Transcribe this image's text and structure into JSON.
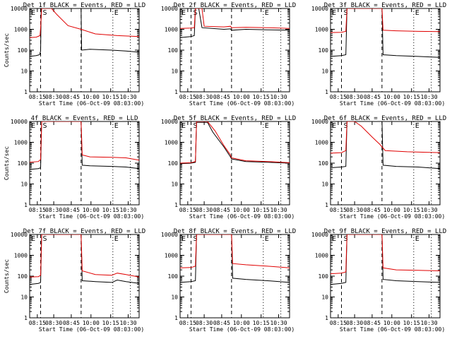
{
  "chart_data": [
    {
      "type": "line",
      "title": "Det 1f BLACK = Events, RED = LLD",
      "ylabel": "Counts/sec",
      "xlabel": "Start Time (06-Oct-09 08:03:00)",
      "xticks": [
        "08:15",
        "08:30",
        "08:45",
        "10:00",
        "10:15",
        "10:30"
      ],
      "yticks": [
        "1",
        "10",
        "100",
        "1000",
        "10000"
      ],
      "ylim": [
        1,
        10000
      ],
      "yscale": "log",
      "markers": {
        "S": "start",
        "E": "end"
      },
      "series": [
        {
          "name": "Events",
          "color": "#000000",
          "points": [
            [
              0,
              50
            ],
            [
              0.06,
              55
            ],
            [
              0.09,
              60
            ],
            [
              0.1,
              90
            ],
            [
              0.105,
              12000
            ],
            [
              0.47,
              12000
            ],
            [
              0.475,
              100
            ],
            [
              0.55,
              110
            ],
            [
              0.75,
              100
            ],
            [
              0.88,
              90
            ],
            [
              1,
              80
            ]
          ]
        },
        {
          "name": "LLD",
          "color": "#e00000",
          "points": [
            [
              0,
              400
            ],
            [
              0.06,
              420
            ],
            [
              0.095,
              500
            ],
            [
              0.1,
              1200
            ],
            [
              0.11,
              12000
            ],
            [
              0.2,
              12000
            ],
            [
              0.25,
              5000
            ],
            [
              0.35,
              1500
            ],
            [
              0.47,
              1000
            ],
            [
              0.6,
              600
            ],
            [
              0.8,
              500
            ],
            [
              1,
              450
            ]
          ]
        }
      ]
    },
    {
      "type": "line",
      "title": "Det 2f BLACK = Events, RED = LLD",
      "ylabel": "",
      "xlabel": "Start Time (06-Oct-09 08:03:00)",
      "xticks": [
        "08:15",
        "08:30",
        "08:45",
        "10:00",
        "10:15",
        "10:30"
      ],
      "yticks": [
        "1",
        "10",
        "100",
        "1000",
        "10000"
      ],
      "ylim": [
        1,
        10000
      ],
      "yscale": "log",
      "markers": {
        "S": "start",
        "E": "end"
      },
      "series": [
        {
          "name": "Events",
          "color": "#000000",
          "points": [
            [
              0,
              400
            ],
            [
              0.1,
              450
            ],
            [
              0.13,
              500
            ],
            [
              0.14,
              12000
            ],
            [
              0.17,
              12000
            ],
            [
              0.2,
              1200
            ],
            [
              0.4,
              1000
            ],
            [
              0.46,
              1050
            ],
            [
              0.47,
              900
            ],
            [
              0.6,
              1000
            ],
            [
              0.8,
              950
            ],
            [
              1,
              900
            ]
          ]
        },
        {
          "name": "LLD",
          "color": "#e00000",
          "points": [
            [
              0,
              1100
            ],
            [
              0.1,
              1150
            ],
            [
              0.13,
              1200
            ],
            [
              0.14,
              12000
            ],
            [
              0.2,
              12000
            ],
            [
              0.22,
              1400
            ],
            [
              0.4,
              1300
            ],
            [
              0.46,
              1400
            ],
            [
              0.47,
              1200
            ],
            [
              0.6,
              1250
            ],
            [
              0.8,
              1200
            ],
            [
              1,
              1100
            ]
          ]
        }
      ]
    },
    {
      "type": "line",
      "title": "Det 3f BLACK = Events, RED = LLD",
      "ylabel": "",
      "xlabel": "Start Time (06-Oct-09 08:03:00)",
      "xticks": [
        "08:15",
        "08:30",
        "08:45",
        "10:00",
        "10:15",
        "10:30"
      ],
      "yticks": [
        "1",
        "10",
        "100",
        "1000",
        "10000"
      ],
      "ylim": [
        1,
        10000
      ],
      "yscale": "log",
      "markers": {
        "S": "start",
        "E": "end"
      },
      "series": [
        {
          "name": "Events",
          "color": "#000000",
          "points": [
            [
              0,
              50
            ],
            [
              0.1,
              55
            ],
            [
              0.14,
              60
            ],
            [
              0.15,
              12000
            ],
            [
              0.16,
              12000
            ],
            [
              0.47,
              12000
            ],
            [
              0.48,
              60
            ],
            [
              0.6,
              55
            ],
            [
              0.8,
              50
            ],
            [
              1,
              45
            ]
          ]
        },
        {
          "name": "LLD",
          "color": "#e00000",
          "points": [
            [
              0,
              700
            ],
            [
              0.1,
              720
            ],
            [
              0.14,
              800
            ],
            [
              0.15,
              12000
            ],
            [
              0.2,
              12000
            ],
            [
              0.47,
              12000
            ],
            [
              0.48,
              900
            ],
            [
              0.6,
              850
            ],
            [
              0.8,
              800
            ],
            [
              1,
              780
            ]
          ]
        }
      ]
    },
    {
      "type": "line",
      "title": "4f BLACK = Events, RED = LLD",
      "ylabel": "Counts/sec",
      "xlabel": "Start Time (06-Oct-09 08:03:00)",
      "xticks": [
        "08:15",
        "08:30",
        "08:45",
        "10:00",
        "10:15",
        "10:30"
      ],
      "yticks": [
        "1",
        "10",
        "100",
        "1000",
        "10000"
      ],
      "ylim": [
        1,
        10000
      ],
      "yscale": "log",
      "markers": {
        "S": "start",
        "E": "end"
      },
      "series": [
        {
          "name": "Events",
          "color": "#000000",
          "points": [
            [
              0,
              50
            ],
            [
              0.08,
              55
            ],
            [
              0.1,
              60
            ],
            [
              0.11,
              12000
            ],
            [
              0.47,
              12000
            ],
            [
              0.48,
              80
            ],
            [
              0.55,
              75
            ],
            [
              0.75,
              70
            ],
            [
              0.88,
              65
            ],
            [
              1,
              55
            ]
          ]
        },
        {
          "name": "LLD",
          "color": "#e00000",
          "points": [
            [
              0,
              110
            ],
            [
              0.08,
              120
            ],
            [
              0.1,
              150
            ],
            [
              0.11,
              12000
            ],
            [
              0.47,
              12000
            ],
            [
              0.48,
              250
            ],
            [
              0.55,
              200
            ],
            [
              0.75,
              190
            ],
            [
              0.88,
              180
            ],
            [
              1,
              140
            ]
          ]
        }
      ]
    },
    {
      "type": "line",
      "title": "Det 5f BLACK = Events, RED = LLD",
      "ylabel": "",
      "xlabel": "Start Time (06-Oct-09 08:03:00)",
      "xticks": [
        "08:15",
        "08:30",
        "08:45",
        "10:00",
        "10:15",
        "10:30"
      ],
      "yticks": [
        "1",
        "10",
        "100",
        "1000",
        "10000"
      ],
      "ylim": [
        1,
        10000
      ],
      "yscale": "log",
      "markers": {
        "S": "start",
        "E": "end"
      },
      "series": [
        {
          "name": "Events",
          "color": "#000000",
          "points": [
            [
              0,
              95
            ],
            [
              0.1,
              100
            ],
            [
              0.14,
              110
            ],
            [
              0.15,
              9000
            ],
            [
              0.25,
              9000
            ],
            [
              0.3,
              3000
            ],
            [
              0.4,
              600
            ],
            [
              0.46,
              200
            ],
            [
              0.47,
              160
            ],
            [
              0.6,
              120
            ],
            [
              0.8,
              110
            ],
            [
              1,
              100
            ]
          ]
        },
        {
          "name": "LLD",
          "color": "#e00000",
          "points": [
            [
              0,
              100
            ],
            [
              0.1,
              105
            ],
            [
              0.14,
              120
            ],
            [
              0.15,
              12000
            ],
            [
              0.25,
              12000
            ],
            [
              0.32,
              3500
            ],
            [
              0.4,
              700
            ],
            [
              0.46,
              250
            ],
            [
              0.47,
              180
            ],
            [
              0.6,
              130
            ],
            [
              0.8,
              120
            ],
            [
              1,
              105
            ]
          ]
        }
      ]
    },
    {
      "type": "line",
      "title": "Det 6f BLACK = Events, RED = LLD",
      "ylabel": "",
      "xlabel": "Start Time (06-Oct-09 08:03:00)",
      "xticks": [
        "08:15",
        "08:30",
        "08:45",
        "10:00",
        "10:15",
        "10:30"
      ],
      "yticks": [
        "1",
        "10",
        "100",
        "1000",
        "10000"
      ],
      "ylim": [
        1,
        10000
      ],
      "yscale": "log",
      "markers": {
        "S": "start",
        "E": "end"
      },
      "series": [
        {
          "name": "Events",
          "color": "#000000",
          "points": [
            [
              0,
              60
            ],
            [
              0.1,
              65
            ],
            [
              0.14,
              70
            ],
            [
              0.15,
              12000
            ],
            [
              0.47,
              12000
            ],
            [
              0.48,
              80
            ],
            [
              0.6,
              70
            ],
            [
              0.8,
              65
            ],
            [
              1,
              55
            ]
          ]
        },
        {
          "name": "LLD",
          "color": "#e00000",
          "points": [
            [
              0,
              300
            ],
            [
              0.1,
              320
            ],
            [
              0.14,
              400
            ],
            [
              0.15,
              12000
            ],
            [
              0.22,
              12000
            ],
            [
              0.28,
              6000
            ],
            [
              0.38,
              1800
            ],
            [
              0.45,
              800
            ],
            [
              0.5,
              400
            ],
            [
              0.7,
              350
            ],
            [
              0.9,
              330
            ],
            [
              1,
              320
            ]
          ]
        }
      ]
    },
    {
      "type": "line",
      "title": "Det 7f BLACK = Events, RED = LLD",
      "ylabel": "Counts/sec",
      "xlabel": "Start Time (06-Oct-09 08:03:00)",
      "xticks": [
        "08:15",
        "08:30",
        "08:45",
        "10:00",
        "10:15",
        "10:30"
      ],
      "yticks": [
        "1",
        "10",
        "100",
        "1000",
        "10000"
      ],
      "ylim": [
        1,
        10000
      ],
      "yscale": "log",
      "markers": {
        "S": "start",
        "E": "end"
      },
      "series": [
        {
          "name": "Events",
          "color": "#000000",
          "points": [
            [
              0,
              40
            ],
            [
              0.08,
              45
            ],
            [
              0.1,
              50
            ],
            [
              0.11,
              12000
            ],
            [
              0.47,
              12000
            ],
            [
              0.48,
              60
            ],
            [
              0.6,
              55
            ],
            [
              0.75,
              50
            ],
            [
              0.8,
              65
            ],
            [
              0.88,
              55
            ],
            [
              1,
              45
            ]
          ]
        },
        {
          "name": "LLD",
          "color": "#e00000",
          "points": [
            [
              0,
              90
            ],
            [
              0.08,
              95
            ],
            [
              0.1,
              110
            ],
            [
              0.11,
              12000
            ],
            [
              0.47,
              12000
            ],
            [
              0.48,
              180
            ],
            [
              0.6,
              120
            ],
            [
              0.75,
              110
            ],
            [
              0.8,
              140
            ],
            [
              0.88,
              120
            ],
            [
              1,
              90
            ]
          ]
        }
      ]
    },
    {
      "type": "line",
      "title": "Det 8f BLACK = Events, RED = LLD",
      "ylabel": "",
      "xlabel": "Start Time (06-Oct-09 08:03:00)",
      "xticks": [
        "08:15",
        "08:30",
        "08:45",
        "10:00",
        "10:15",
        "10:30"
      ],
      "yticks": [
        "1",
        "10",
        "100",
        "1000",
        "10000"
      ],
      "ylim": [
        1,
        10000
      ],
      "yscale": "log",
      "markers": {
        "S": "start",
        "E": "end"
      },
      "series": [
        {
          "name": "Events",
          "color": "#000000",
          "points": [
            [
              0,
              50
            ],
            [
              0.1,
              55
            ],
            [
              0.14,
              60
            ],
            [
              0.15,
              12000
            ],
            [
              0.47,
              12000
            ],
            [
              0.48,
              80
            ],
            [
              0.6,
              70
            ],
            [
              0.8,
              60
            ],
            [
              1,
              50
            ]
          ]
        },
        {
          "name": "LLD",
          "color": "#e00000",
          "points": [
            [
              0,
              250
            ],
            [
              0.1,
              260
            ],
            [
              0.14,
              300
            ],
            [
              0.15,
              12000
            ],
            [
              0.47,
              12000
            ],
            [
              0.48,
              400
            ],
            [
              0.6,
              350
            ],
            [
              0.8,
              300
            ],
            [
              1,
              250
            ]
          ]
        }
      ]
    },
    {
      "type": "line",
      "title": "Det 9f BLACK = Events, RED = LLD",
      "ylabel": "",
      "xlabel": "Start Time (06-Oct-09 08:03:00)",
      "xticks": [
        "08:15",
        "08:30",
        "08:45",
        "10:00",
        "10:15",
        "10:30"
      ],
      "yticks": [
        "1",
        "10",
        "100",
        "1000",
        "10000"
      ],
      "ylim": [
        1,
        10000
      ],
      "yscale": "log",
      "markers": {
        "S": "start",
        "E": "end"
      },
      "series": [
        {
          "name": "Events",
          "color": "#000000",
          "points": [
            [
              0,
              40
            ],
            [
              0.1,
              45
            ],
            [
              0.14,
              50
            ],
            [
              0.15,
              12000
            ],
            [
              0.47,
              12000
            ],
            [
              0.48,
              70
            ],
            [
              0.6,
              60
            ],
            [
              0.8,
              55
            ],
            [
              1,
              50
            ]
          ]
        },
        {
          "name": "LLD",
          "color": "#e00000",
          "points": [
            [
              0,
              130
            ],
            [
              0.1,
              140
            ],
            [
              0.14,
              160
            ],
            [
              0.15,
              12000
            ],
            [
              0.47,
              12000
            ],
            [
              0.48,
              250
            ],
            [
              0.6,
              200
            ],
            [
              0.8,
              190
            ],
            [
              1,
              180
            ]
          ]
        }
      ]
    }
  ]
}
